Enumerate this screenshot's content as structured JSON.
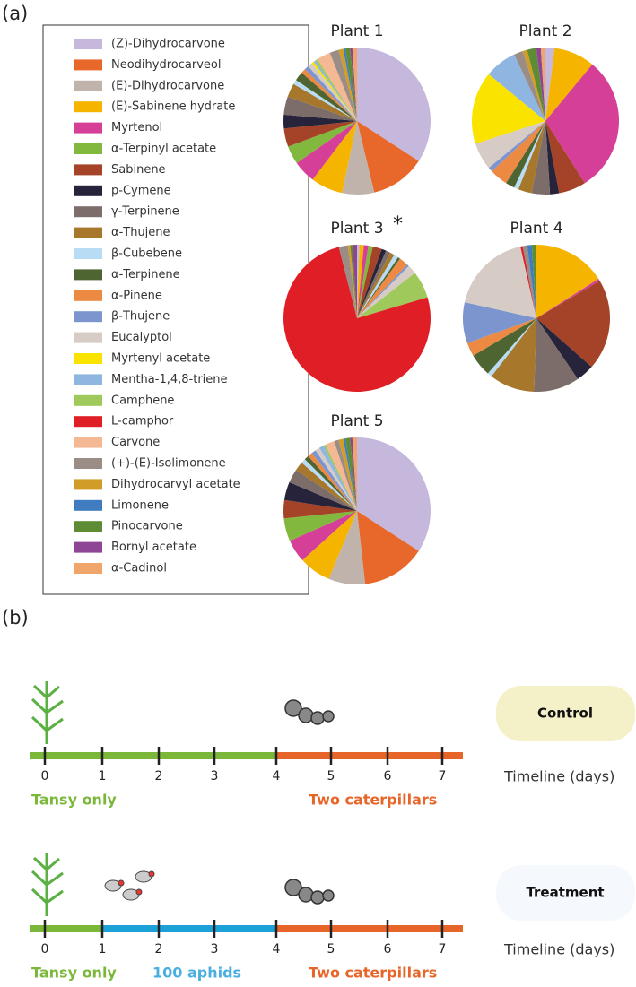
{
  "panel_labels": [
    "(a)",
    "(b)"
  ],
  "chart_data": {
    "type": "pie",
    "categories": [
      "(Z)-Dihydrocarvone",
      "Neodihydrocarveol",
      "(E)-Dihydrocarvone",
      "(E)-Sabinene hydrate",
      "Myrtenol",
      "α-Terpinyl acetate",
      "Sabinene",
      "p-Cymene",
      "γ-Terpinene",
      "α-Thujene",
      "β-Cubebene",
      "α-Terpinene",
      "α-Pinene",
      "β-Thujene",
      "Eucalyptol",
      "Myrtenyl acetate",
      "Mentha-1,4,8-triene",
      "Camphene",
      "L-camphor",
      "Carvone",
      "(+)-(E)-Isolimonene",
      "Dihydrocarvyl acetate",
      "Limonene",
      "Pinocarvone",
      "Bornyl acetate",
      "α-Cadinol"
    ],
    "colors": [
      "#c5b8dc",
      "#e8672a",
      "#bfb3ac",
      "#f5b400",
      "#d63f97",
      "#83b83e",
      "#a44328",
      "#27233a",
      "#7c6d6a",
      "#a7782c",
      "#b7dcf3",
      "#4e6431",
      "#ec8a43",
      "#7d95cf",
      "#d6cbc5",
      "#fbe300",
      "#8fb6e0",
      "#9fc95a",
      "#e01e26",
      "#f5b895",
      "#9a8d86",
      "#d29d27",
      "#3f7cc0",
      "#5e8c34",
      "#8e4596",
      "#f0a56b"
    ],
    "series": [
      {
        "name": "Plant 1",
        "values": [
          34,
          12,
          7,
          7,
          5,
          4,
          4,
          3,
          4,
          3,
          1,
          2,
          1,
          1,
          1,
          0.5,
          0.5,
          0.5,
          0,
          3,
          2,
          1,
          0.5,
          1,
          0.5,
          1
        ]
      },
      {
        "name": "Plant 2",
        "values": [
          2,
          0,
          0,
          9,
          30,
          0,
          6,
          2,
          4,
          3,
          1,
          2,
          4,
          1,
          6,
          16,
          7,
          0,
          0,
          0,
          2,
          1,
          0,
          2,
          1,
          1
        ]
      },
      {
        "name": "Plant 3",
        "annotation": "*",
        "values": [
          0.5,
          0,
          0,
          1,
          1,
          1,
          2,
          1,
          1,
          1,
          1,
          0.5,
          2,
          0.5,
          2,
          0,
          0,
          6,
          76,
          0,
          2,
          0.5,
          0,
          0.5,
          1,
          0
        ]
      },
      {
        "name": "Plant 4",
        "values": [
          0,
          0,
          0,
          16,
          0.5,
          0,
          20,
          4,
          10,
          10,
          1,
          5,
          3,
          9,
          18,
          0,
          0,
          0,
          0.5,
          0,
          1,
          0,
          1,
          1,
          0,
          0
        ]
      },
      {
        "name": "Plant 5",
        "values": [
          34,
          14,
          8,
          7,
          5,
          5,
          4,
          4,
          3,
          2,
          1,
          1,
          1,
          1,
          1,
          0,
          1,
          0.5,
          0,
          2,
          1,
          1,
          0.5,
          1,
          0.5,
          1
        ]
      }
    ]
  },
  "timeline": {
    "axis_label": "Timeline (days)",
    "ticks": [
      0,
      1,
      2,
      3,
      4,
      5,
      6,
      7
    ],
    "rows": [
      {
        "label": "Control",
        "segments": [
          "Tansy only",
          "Two caterpillars"
        ]
      },
      {
        "label": "Treatment",
        "segments": [
          "Tansy only",
          "100 aphids",
          "Two caterpillars"
        ]
      }
    ]
  }
}
